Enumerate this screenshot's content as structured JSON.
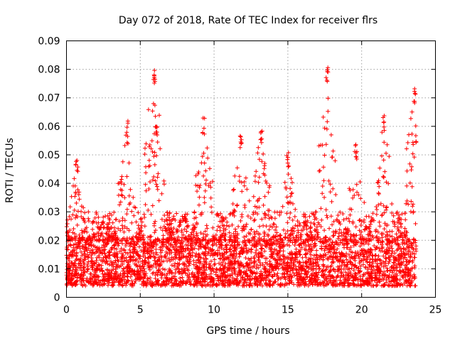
{
  "chart_data": {
    "type": "scatter",
    "title": "Day 072 of 2018, Rate Of TEC Index for receiver flrs",
    "xlabel": "GPS time / hours",
    "ylabel": "ROTI / TECUs",
    "xlim": [
      0,
      25
    ],
    "ylim": [
      0,
      0.09
    ],
    "xticks": [
      0,
      5,
      10,
      15,
      20,
      25
    ],
    "xtick_labels": [
      "0",
      "5",
      "10",
      "15",
      "20",
      "25"
    ],
    "yticks": [
      0,
      0.01,
      0.02,
      0.03,
      0.04,
      0.05,
      0.06,
      0.07,
      0.08,
      0.09
    ],
    "ytick_labels": [
      "0",
      "0.01",
      "0.02",
      "0.03",
      "0.04",
      "0.05",
      "0.06",
      "0.07",
      "0.08",
      "0.09"
    ],
    "grid": true,
    "marker": "plus",
    "color": "#ff0000",
    "series": [
      {
        "name": "ROTI",
        "x_range": [
          0,
          23.7
        ],
        "baseline_band": [
          0.004,
          0.02
        ],
        "envelope_peaks": [
          {
            "x": 0.7,
            "y": 0.049
          },
          {
            "x": 4.1,
            "y": 0.062
          },
          {
            "x": 5.9,
            "y": 0.08
          },
          {
            "x": 6.1,
            "y": 0.06
          },
          {
            "x": 9.3,
            "y": 0.063
          },
          {
            "x": 11.8,
            "y": 0.058
          },
          {
            "x": 13.2,
            "y": 0.06
          },
          {
            "x": 15.0,
            "y": 0.051
          },
          {
            "x": 17.7,
            "y": 0.081
          },
          {
            "x": 19.6,
            "y": 0.054
          },
          {
            "x": 21.5,
            "y": 0.064
          },
          {
            "x": 23.6,
            "y": 0.074
          }
        ]
      }
    ]
  }
}
